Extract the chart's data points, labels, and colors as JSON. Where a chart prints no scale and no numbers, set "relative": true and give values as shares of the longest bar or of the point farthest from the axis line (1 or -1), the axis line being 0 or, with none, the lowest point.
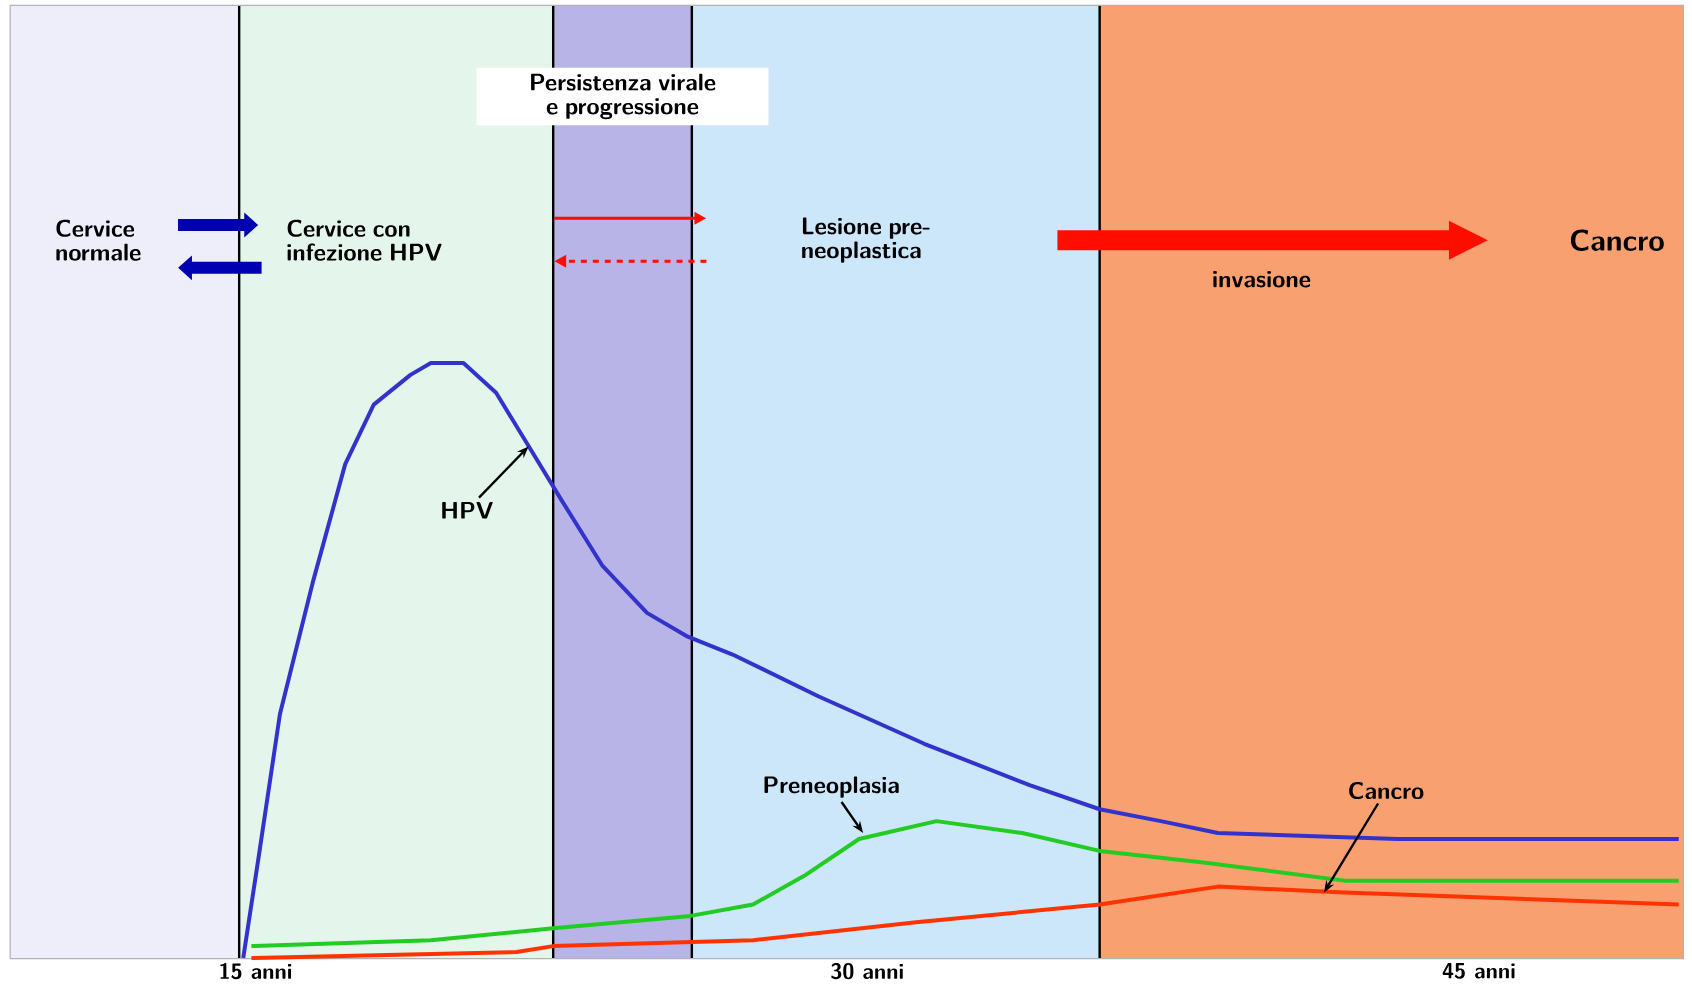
{
  "chart_data": {
    "type": "line",
    "relative": true,
    "xlim": [
      9,
      50
    ],
    "xticks": [
      {
        "value": 15,
        "label": "15 anni"
      },
      {
        "value": 30,
        "label": "30 anni"
      },
      {
        "value": 45,
        "label": "45 anni"
      }
    ],
    "tick_labels": "x",
    "series": [
      {
        "color": "#3333cc",
        "x": [
          14.7,
          15.1,
          15.6,
          16.4,
          17.2,
          17.9,
          18.8,
          19.3,
          20.1,
          20.9,
          21.7,
          22.5,
          23.5,
          24.6,
          25.6,
          26.7,
          28.8,
          31.4,
          34.0,
          35.7,
          37.2,
          38.6,
          43.0,
          49.9
        ],
        "values": [
          0,
          0.18,
          0.41,
          0.63,
          0.83,
          0.93,
          0.98,
          1,
          1,
          0.95,
          0.86,
          0.77,
          0.66,
          0.58,
          0.54,
          0.51,
          0.44,
          0.36,
          0.29,
          0.25,
          0.23,
          0.21,
          0.2,
          0.2
        ]
      },
      {
        "color": "#22cc22",
        "x": [
          14.9,
          19.3,
          22.3,
          25.6,
          27.2,
          28.5,
          29.8,
          31.7,
          33.8,
          35.7,
          38.3,
          41.7,
          49.9
        ],
        "values": [
          0.02,
          0.03,
          0.05,
          0.07,
          0.09,
          0.14,
          0.2,
          0.23,
          0.21,
          0.18,
          0.16,
          0.13,
          0.13
        ]
      },
      {
        "color": "#ff3300",
        "x": [
          14.9,
          21.4,
          22.3,
          27.2,
          31.2,
          35.7,
          38.6,
          41.7,
          49.9
        ],
        "values": [
          0,
          0.01,
          0.02,
          0.03,
          0.06,
          0.09,
          0.12,
          0.11,
          0.09
        ]
      }
    ],
    "bands": [
      {
        "axis": "x",
        "from": 9,
        "to": 14.6,
        "label": "Cervice normale",
        "color": "#eeeefa"
      },
      {
        "axis": "x",
        "from": 14.6,
        "to": 22.3,
        "label": "Cervice con infezione HPV",
        "color": "#e4f5ec"
      },
      {
        "axis": "x",
        "from": 22.3,
        "to": 25.7,
        "label": "Persistenza virale e progressione",
        "color": "#b8b4e8"
      },
      {
        "axis": "x",
        "from": 25.7,
        "to": 35.7,
        "label": "Lesione pre-neoplastica",
        "color": "#cce6fa"
      },
      {
        "axis": "x",
        "from": 35.7,
        "to": 50,
        "label": "Cancro",
        "color": "#f8a070"
      }
    ],
    "annotations": [
      {
        "text": "HPV",
        "x": 21.7,
        "y": 0.86
      },
      {
        "text": "Preneoplasia",
        "x": 29.9,
        "y": 0.21
      },
      {
        "text": "Cancro",
        "x": 41.2,
        "y": 0.11
      },
      "invasione"
    ]
  }
}
